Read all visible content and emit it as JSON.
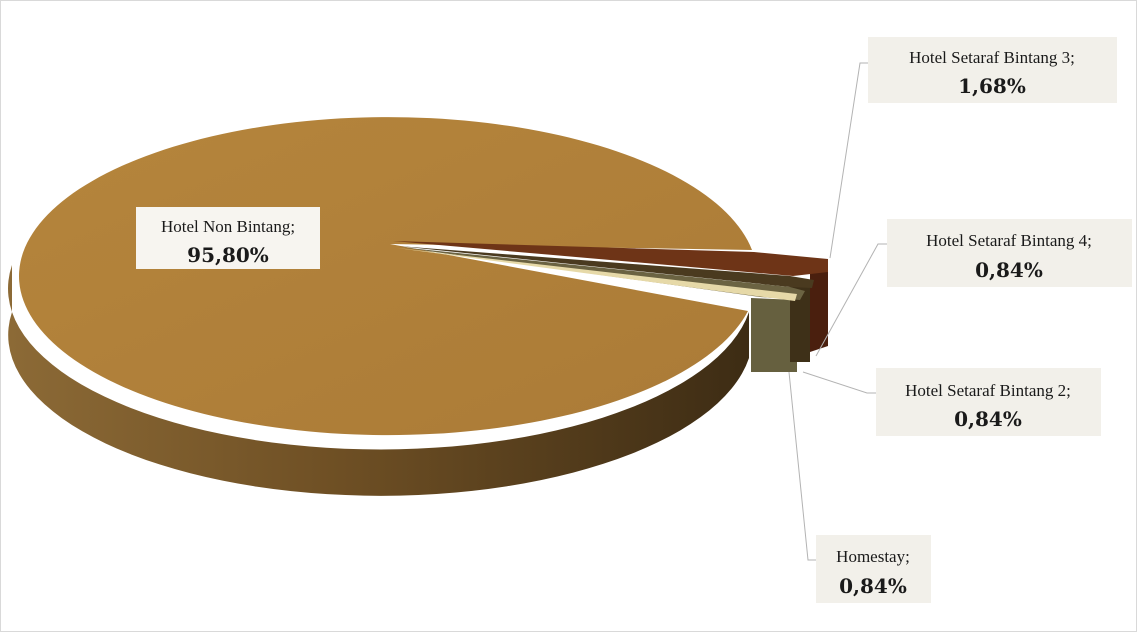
{
  "chart_data": {
    "type": "pie",
    "style": "3d-exploded",
    "slices": [
      {
        "label": "Hotel Non Bintang;",
        "value": "95,80%",
        "pct": 95.8,
        "color": "#b07f39"
      },
      {
        "label": "Hotel Setaraf Bintang 3;",
        "value": "1,68%",
        "pct": 1.68,
        "color": "#6e3417"
      },
      {
        "label": "Hotel Setaraf Bintang 4;",
        "value": "0,84%",
        "pct": 0.84,
        "color": "#4a3a1f"
      },
      {
        "label": "Hotel Setaraf Bintang 2;",
        "value": "0,84%",
        "pct": 0.84,
        "color": "#6b6342"
      },
      {
        "label": "Homestay;",
        "value": "0,84%",
        "pct": 0.84,
        "color": "#e6d9a8"
      }
    ]
  }
}
